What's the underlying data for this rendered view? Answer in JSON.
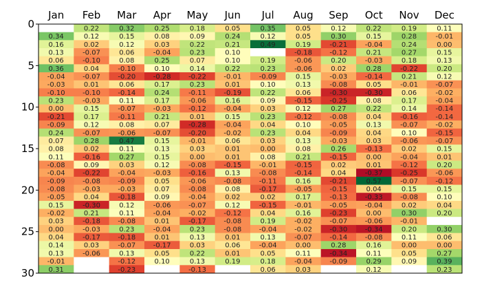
{
  "chart_data": {
    "type": "heatmap",
    "title": "",
    "xlabel": "",
    "ylabel": "",
    "months": [
      "Jan",
      "Feb",
      "Mar",
      "Apr",
      "May",
      "Jun",
      "Jul",
      "Aug",
      "Sep",
      "Oct",
      "Nov",
      "Dec"
    ],
    "y_ticks": [
      "0",
      "5",
      "10",
      "15",
      "20",
      "25",
      "30"
    ],
    "y_range": [
      0,
      30
    ],
    "color_scale": {
      "min": -0.4,
      "max": 0.5,
      "low": "#a50026",
      "mid": "#ffffbf",
      "high": "#006837"
    },
    "values": [
      [
        null,
        0.22,
        0.32,
        0.25,
        0.18,
        0.05,
        0.35,
        0.05,
        0.12,
        0.22,
        0.19,
        0.11
      ],
      [
        0.34,
        0.12,
        0.15,
        0.08,
        0.09,
        0.24,
        0.12,
        0.05,
        0.3,
        0.15,
        0.28,
        -0.01
      ],
      [
        0.16,
        0.02,
        0.12,
        0.03,
        0.22,
        0.21,
        0.49,
        0.19,
        -0.21,
        -0.04,
        0.24,
        0.0
      ],
      [
        0.13,
        -0.07,
        0.06,
        -0.04,
        0.23,
        0.1,
        null,
        -0.18,
        -0.12,
        0.21,
        0.27,
        0.15
      ],
      [
        0.06,
        -0.1,
        0.08,
        0.25,
        0.07,
        0.1,
        0.19,
        -0.06,
        0.2,
        -0.03,
        0.18,
        0.13
      ],
      [
        0.36,
        0.04,
        -0.1,
        0.1,
        0.14,
        0.22,
        0.23,
        -0.06,
        0.02,
        0.28,
        -0.22,
        0.2
      ],
      [
        -0.04,
        -0.07,
        -0.2,
        -0.28,
        -0.22,
        -0.01,
        -0.09,
        0.15,
        -0.03,
        -0.14,
        0.21,
        0.12
      ],
      [
        -0.03,
        0.01,
        0.06,
        0.17,
        0.23,
        0.01,
        0.1,
        0.13,
        -0.08,
        0.05,
        -0.01,
        -0.07
      ],
      [
        -0.1,
        -0.1,
        -0.14,
        0.24,
        -0.11,
        -0.19,
        0.22,
        0.06,
        -0.3,
        -0.3,
        0.06,
        -0.02
      ],
      [
        0.23,
        -0.03,
        0.11,
        0.17,
        -0.06,
        0.16,
        0.09,
        -0.15,
        -0.25,
        0.08,
        0.17,
        -0.04
      ],
      [
        0.0,
        0.15,
        -0.07,
        -0.03,
        -0.12,
        -0.04,
        0.03,
        0.12,
        0.27,
        0.22,
        0.14,
        -0.14
      ],
      [
        -0.21,
        0.17,
        -0.11,
        0.21,
        0.01,
        0.15,
        0.23,
        -0.12,
        -0.08,
        0.04,
        -0.16,
        -0.14
      ],
      [
        -0.09,
        0.12,
        0.08,
        0.07,
        -0.28,
        -0.04,
        0.04,
        0.1,
        -0.05,
        0.13,
        -0.07,
        -0.02
      ],
      [
        0.24,
        -0.07,
        -0.06,
        -0.07,
        -0.2,
        -0.02,
        0.23,
        0.04,
        -0.09,
        0.04,
        0.1,
        -0.15
      ],
      [
        0.07,
        0.28,
        0.47,
        0.15,
        -0.01,
        0.06,
        0.03,
        0.13,
        -0.03,
        0.03,
        -0.06,
        -0.07
      ],
      [
        0.08,
        0.02,
        0.11,
        0.13,
        0.03,
        0.01,
        0.0,
        0.08,
        0.26,
        -0.13,
        0.02,
        0.15
      ],
      [
        0.11,
        -0.16,
        0.27,
        0.15,
        0.0,
        0.01,
        0.08,
        0.21,
        -0.15,
        0.0,
        -0.04,
        0.01
      ],
      [
        -0.08,
        0.09,
        0.03,
        0.12,
        -0.08,
        -0.15,
        -0.01,
        -0.15,
        0.02,
        0.01,
        -0.12,
        0.2
      ],
      [
        -0.04,
        -0.22,
        -0.04,
        -0.03,
        -0.16,
        0.13,
        -0.08,
        -0.14,
        0.04,
        -0.37,
        -0.25,
        -0.06
      ],
      [
        -0.09,
        -0.08,
        -0.09,
        0.05,
        -0.06,
        -0.08,
        -0.11,
        0.16,
        -0.21,
        0.57,
        -0.07,
        -0.12
      ],
      [
        -0.08,
        -0.03,
        -0.03,
        0.07,
        -0.08,
        0.08,
        -0.17,
        -0.05,
        -0.15,
        0.04,
        0.15,
        0.15
      ],
      [
        -0.05,
        0.04,
        -0.18,
        0.09,
        -0.04,
        0.02,
        0.02,
        0.17,
        -0.13,
        -0.33,
        -0.08,
        0.1
      ],
      [
        0.15,
        -0.3,
        0.12,
        -0.06,
        -0.07,
        0.12,
        -0.15,
        -0.01,
        -0.05,
        -0.04,
        0.02,
        0.04
      ],
      [
        -0.02,
        0.21,
        0.11,
        -0.04,
        -0.02,
        -0.12,
        0.04,
        0.16,
        -0.23,
        0.0,
        0.3,
        0.2
      ],
      [
        0.03,
        -0.18,
        -0.08,
        0.01,
        -0.17,
        -0.08,
        0.19,
        -0.02,
        -0.07,
        -0.06,
        -0.01,
        null
      ],
      [
        -0.0,
        -0.03,
        0.23,
        -0.04,
        0.23,
        -0.08,
        -0.04,
        -0.02,
        -0.3,
        -0.34,
        0.2,
        0.3
      ],
      [
        0.04,
        -0.17,
        -0.18,
        0.01,
        0.13,
        0.01,
        0.13,
        -0.07,
        -0.14,
        -0.08,
        0.11,
        0.06
      ],
      [
        0.14,
        0.03,
        -0.07,
        -0.17,
        0.03,
        0.06,
        -0.04,
        0.0,
        0.28,
        0.16,
        0.0,
        0.0
      ],
      [
        0.13,
        -0.06,
        0.13,
        0.05,
        0.22,
        0.01,
        0.05,
        0.11,
        -0.34,
        0.11,
        0.05,
        0.27
      ],
      [
        -0.01,
        null,
        -0.12,
        0.1,
        0.13,
        0.19,
        0.18,
        -0.04,
        -0.09,
        0.29,
        0.09,
        0.39
      ],
      [
        0.31,
        null,
        -0.23,
        null,
        -0.13,
        null,
        0.06,
        0.03,
        null,
        0.12,
        null,
        0.23
      ]
    ]
  }
}
